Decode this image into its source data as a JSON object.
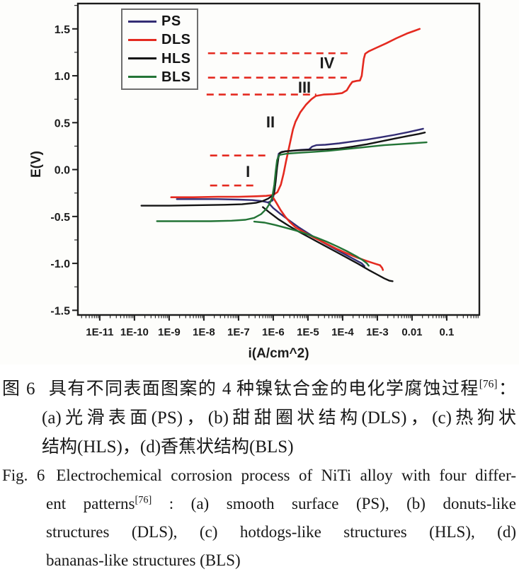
{
  "accent_colors": {
    "axis": "#1c1c1c",
    "dashed_guide": "#e42a20",
    "legend_border": "#6e6e6e",
    "background": "#fdfdfb"
  },
  "chart_data": {
    "type": "line",
    "title": "",
    "xlabel": "i(A/cm^2)",
    "ylabel": "E(V)",
    "x_scale": "log10",
    "grid": false,
    "legend_position": "top-left-inside",
    "x_range_log": [
      -11.63,
      -0.06
    ],
    "y_range": [
      -1.55,
      1.77
    ],
    "x_ticks": {
      "logs": [
        -11,
        -10,
        -9,
        -8,
        -7,
        -6,
        -5,
        -4,
        -3,
        -2,
        -1
      ],
      "labels": [
        "1E-11",
        "1E-10",
        "1E-9",
        "1E-8",
        "1E-7",
        "1E-6",
        "1E-5",
        "1E-4",
        "1E-3",
        "0.01",
        "0.1"
      ]
    },
    "y_ticks": {
      "values": [
        1.5,
        1.0,
        0.5,
        0.0,
        -0.5,
        -1.0,
        -1.5
      ],
      "labels": [
        "1.5",
        "1.0",
        "0.5",
        "0.0",
        "-0.5",
        "-1.0",
        "-1.5"
      ],
      "minor_step": 0.25
    },
    "series": [
      {
        "name": "PS",
        "color": "#332d74",
        "width": 2.4,
        "segments": [
          [
            [
              -8.78,
              -0.315
            ],
            [
              -8.2,
              -0.315
            ],
            [
              -7.6,
              -0.315
            ],
            [
              -7.0,
              -0.32
            ],
            [
              -6.6,
              -0.325
            ],
            [
              -6.35,
              -0.335
            ],
            [
              -6.15,
              -0.35
            ],
            [
              -6.02,
              -0.33
            ],
            [
              -5.96,
              -0.22
            ],
            [
              -5.92,
              -0.05
            ],
            [
              -5.88,
              0.1
            ],
            [
              -5.84,
              0.17
            ],
            [
              -5.75,
              0.19
            ],
            [
              -5.5,
              0.2
            ],
            [
              -5.2,
              0.21
            ],
            [
              -4.97,
              0.215
            ],
            [
              -4.88,
              0.245
            ],
            [
              -4.76,
              0.26
            ],
            [
              -4.5,
              0.265
            ],
            [
              -4.1,
              0.28
            ],
            [
              -3.7,
              0.3
            ],
            [
              -3.3,
              0.32
            ],
            [
              -2.9,
              0.345
            ],
            [
              -2.5,
              0.37
            ],
            [
              -2.1,
              0.4
            ],
            [
              -1.68,
              0.435
            ]
          ],
          [
            [
              -6.15,
              -0.35
            ],
            [
              -6.0,
              -0.41
            ],
            [
              -5.8,
              -0.47
            ],
            [
              -5.55,
              -0.54
            ],
            [
              -5.25,
              -0.62
            ],
            [
              -4.95,
              -0.69
            ],
            [
              -4.6,
              -0.77
            ],
            [
              -4.25,
              -0.84
            ],
            [
              -3.95,
              -0.9
            ],
            [
              -3.65,
              -0.96
            ],
            [
              -3.45,
              -1.0
            ],
            [
              -3.37,
              -1.03
            ]
          ]
        ]
      },
      {
        "name": "DLS",
        "color": "#e42a20",
        "width": 2.6,
        "segments": [
          [
            [
              -8.94,
              -0.295
            ],
            [
              -8.3,
              -0.295
            ],
            [
              -7.6,
              -0.29
            ],
            [
              -7.0,
              -0.29
            ],
            [
              -6.5,
              -0.285
            ],
            [
              -6.2,
              -0.28
            ],
            [
              -6.0,
              -0.27
            ],
            [
              -5.88,
              -0.24
            ],
            [
              -5.78,
              -0.16
            ],
            [
              -5.7,
              -0.04
            ],
            [
              -5.63,
              0.09
            ],
            [
              -5.56,
              0.21
            ],
            [
              -5.49,
              0.33
            ],
            [
              -5.43,
              0.43
            ],
            [
              -5.36,
              0.51
            ],
            [
              -5.22,
              0.61
            ],
            [
              -5.06,
              0.69
            ],
            [
              -4.9,
              0.75
            ],
            [
              -4.77,
              0.785
            ],
            [
              -4.55,
              0.8
            ],
            [
              -4.25,
              0.805
            ],
            [
              -4.02,
              0.815
            ],
            [
              -3.88,
              0.845
            ],
            [
              -3.79,
              0.9
            ],
            [
              -3.72,
              0.935
            ],
            [
              -3.6,
              0.945
            ],
            [
              -3.5,
              0.95
            ],
            [
              -3.45,
              1.0
            ],
            [
              -3.42,
              1.09
            ],
            [
              -3.39,
              1.18
            ],
            [
              -3.35,
              1.235
            ],
            [
              -3.25,
              1.26
            ],
            [
              -3.05,
              1.295
            ],
            [
              -2.75,
              1.345
            ],
            [
              -2.45,
              1.4
            ],
            [
              -2.15,
              1.45
            ],
            [
              -1.92,
              1.48
            ],
            [
              -1.78,
              1.5
            ]
          ],
          [
            [
              -6.0,
              -0.3
            ],
            [
              -5.9,
              -0.36
            ],
            [
              -5.79,
              -0.43
            ],
            [
              -5.66,
              -0.5
            ],
            [
              -5.52,
              -0.56
            ],
            [
              -5.36,
              -0.615
            ],
            [
              -5.1,
              -0.67
            ],
            [
              -4.8,
              -0.73
            ],
            [
              -4.5,
              -0.785
            ],
            [
              -4.2,
              -0.84
            ],
            [
              -3.9,
              -0.89
            ],
            [
              -3.6,
              -0.935
            ],
            [
              -3.3,
              -0.975
            ],
            [
              -3.05,
              -1.005
            ],
            [
              -2.92,
              -1.02
            ],
            [
              -2.86,
              -1.05
            ],
            [
              -2.84,
              -1.07
            ]
          ]
        ]
      },
      {
        "name": "HLS",
        "color": "#141414",
        "width": 2.4,
        "segments": [
          [
            [
              -9.8,
              -0.385
            ],
            [
              -9.0,
              -0.385
            ],
            [
              -8.2,
              -0.38
            ],
            [
              -7.4,
              -0.375
            ],
            [
              -6.9,
              -0.37
            ],
            [
              -6.5,
              -0.355
            ],
            [
              -6.3,
              -0.335
            ],
            [
              -6.15,
              -0.31
            ],
            [
              -6.05,
              -0.285
            ],
            [
              -5.98,
              -0.26
            ],
            [
              -5.93,
              -0.13
            ],
            [
              -5.89,
              0.02
            ],
            [
              -5.85,
              0.13
            ],
            [
              -5.8,
              0.18
            ],
            [
              -5.65,
              0.195
            ],
            [
              -5.3,
              0.205
            ],
            [
              -4.9,
              0.21
            ],
            [
              -4.5,
              0.215
            ],
            [
              -4.1,
              0.225
            ],
            [
              -3.7,
              0.245
            ],
            [
              -3.3,
              0.27
            ],
            [
              -2.9,
              0.3
            ],
            [
              -2.5,
              0.33
            ],
            [
              -2.1,
              0.36
            ],
            [
              -1.8,
              0.38
            ],
            [
              -1.63,
              0.395
            ]
          ],
          [
            [
              -6.3,
              -0.4
            ],
            [
              -6.1,
              -0.46
            ],
            [
              -5.85,
              -0.53
            ],
            [
              -5.55,
              -0.6
            ],
            [
              -5.25,
              -0.665
            ],
            [
              -4.9,
              -0.735
            ],
            [
              -4.55,
              -0.805
            ],
            [
              -4.2,
              -0.875
            ],
            [
              -3.85,
              -0.945
            ],
            [
              -3.55,
              -1.005
            ],
            [
              -3.25,
              -1.07
            ],
            [
              -3.0,
              -1.12
            ],
            [
              -2.8,
              -1.16
            ],
            [
              -2.65,
              -1.185
            ],
            [
              -2.56,
              -1.19
            ]
          ]
        ]
      },
      {
        "name": "BLS",
        "color": "#237436",
        "width": 2.4,
        "segments": [
          [
            [
              -9.35,
              -0.55
            ],
            [
              -8.6,
              -0.55
            ],
            [
              -7.8,
              -0.55
            ],
            [
              -7.2,
              -0.545
            ],
            [
              -6.8,
              -0.535
            ],
            [
              -6.55,
              -0.515
            ],
            [
              -6.35,
              -0.475
            ],
            [
              -6.2,
              -0.42
            ],
            [
              -6.1,
              -0.36
            ],
            [
              -6.03,
              -0.3
            ],
            [
              -5.97,
              -0.16
            ],
            [
              -5.93,
              -0.02
            ],
            [
              -5.89,
              0.1
            ],
            [
              -5.83,
              0.155
            ],
            [
              -5.6,
              0.17
            ],
            [
              -5.2,
              0.18
            ],
            [
              -4.8,
              0.19
            ],
            [
              -4.4,
              0.2
            ],
            [
              -4.0,
              0.215
            ],
            [
              -3.6,
              0.23
            ],
            [
              -3.2,
              0.245
            ],
            [
              -2.8,
              0.26
            ],
            [
              -2.4,
              0.27
            ],
            [
              -2.0,
              0.28
            ],
            [
              -1.58,
              0.29
            ]
          ],
          [
            [
              -6.55,
              -0.555
            ],
            [
              -6.25,
              -0.565
            ],
            [
              -5.95,
              -0.59
            ],
            [
              -5.65,
              -0.62
            ],
            [
              -5.35,
              -0.65
            ],
            [
              -5.05,
              -0.685
            ],
            [
              -4.75,
              -0.725
            ],
            [
              -4.45,
              -0.77
            ],
            [
              -4.15,
              -0.82
            ],
            [
              -3.85,
              -0.875
            ],
            [
              -3.6,
              -0.925
            ],
            [
              -3.42,
              -0.965
            ],
            [
              -3.3,
              -1.0
            ],
            [
              -3.25,
              -1.025
            ]
          ]
        ]
      }
    ],
    "dashed_guides": {
      "color": "#e42a20",
      "lines": [
        {
          "y": 1.24,
          "x1": -7.88,
          "x2": -3.82
        },
        {
          "y": 0.98,
          "x1": -7.88,
          "x2": -3.88
        },
        {
          "y": 0.8,
          "x1": -7.92,
          "x2": -4.76
        },
        {
          "y": 0.15,
          "x1": -7.82,
          "x2": -6.16
        },
        {
          "y": -0.17,
          "x1": -7.82,
          "x2": -6.45
        }
      ]
    },
    "stage_labels": [
      {
        "text": "I",
        "x_log": -6.73,
        "y": -0.02
      },
      {
        "text": "II",
        "x_log": -6.08,
        "y": 0.51
      },
      {
        "text": "III",
        "x_log": -5.1,
        "y": 0.88
      },
      {
        "text": "IV",
        "x_log": -4.45,
        "y": 1.14
      }
    ]
  },
  "legend": {
    "entries": [
      {
        "label": "PS"
      },
      {
        "label": "DLS"
      },
      {
        "label": "HLS"
      },
      {
        "label": "BLS"
      }
    ]
  },
  "caption": {
    "zh": {
      "tag": "图 6",
      "line1_main": "具有不同表面图案的 4 种镍钛合金的电化学腐蚀过程",
      "line1_sup": "[76]",
      "line1_tail": "：",
      "line2": "(a)光滑表面(PS)，(b)甜甜圈状结构(DLS)，(c)热狗状",
      "line3": "结构(HLS)，(d)香蕉状结构(BLS)"
    },
    "en": {
      "tag": "Fig. 6",
      "line1": "Electrochemical corrosion process of NiTi alloy with four differ-",
      "line2_pre": "ent patterns",
      "line2_sup": "[76]",
      "line2_tail": " : (a) smooth surface (PS), (b) donuts-like",
      "line3": "structures (DLS), (c) hotdogs-like structures (HLS), (d)",
      "line4": "bananas-like structures (BLS)"
    }
  }
}
